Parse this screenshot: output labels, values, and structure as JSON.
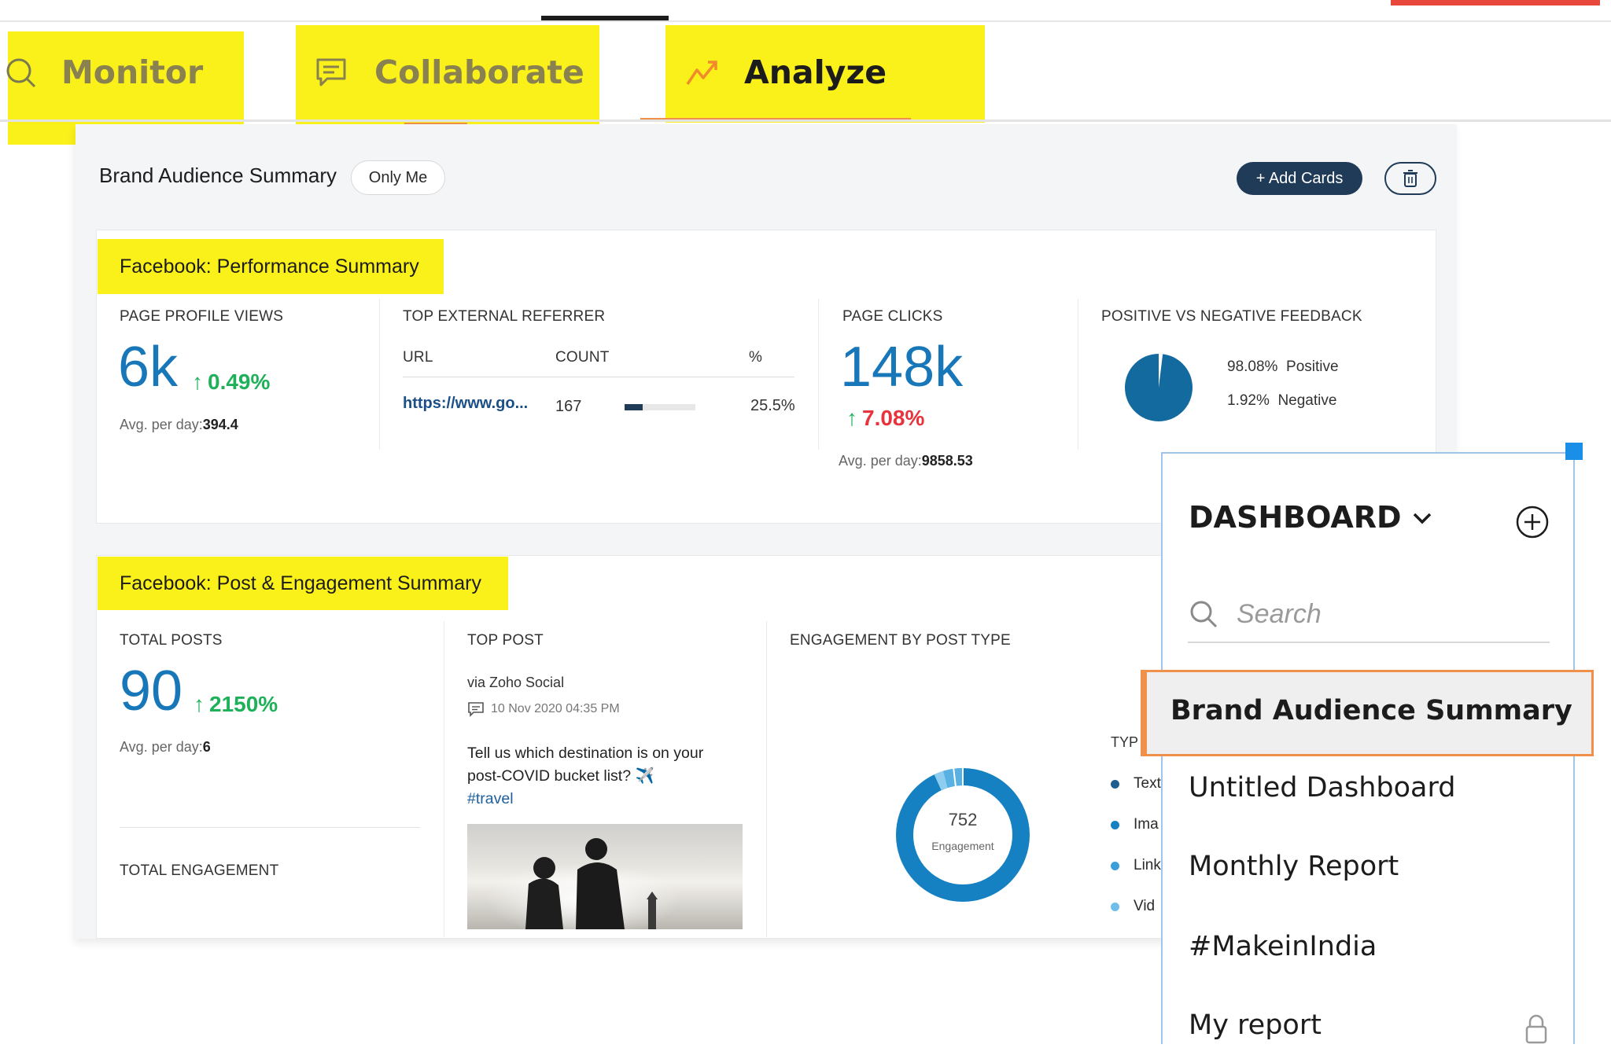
{
  "nav": {
    "monitor": "Monitor",
    "collaborate": "Collaborate",
    "analyze": "Analyze"
  },
  "dashboard": {
    "title": "Brand Audience Summary",
    "visibility": "Only Me",
    "add_cards": "+ Add Cards"
  },
  "performance": {
    "title": "Facebook: Performance Summary",
    "profile_views": {
      "label": "PAGE PROFILE VIEWS",
      "value": "6k",
      "change": "0.49%",
      "avg_label": "Avg. per day:",
      "avg_value": "394.4"
    },
    "referrer": {
      "label": "TOP EXTERNAL REFERRER",
      "col_url": "URL",
      "col_count": "COUNT",
      "col_pct": "%",
      "row_url": "https://www.go...",
      "row_count": "167",
      "row_pct": "25.5%",
      "row_fraction": 0.255
    },
    "clicks": {
      "label": "PAGE CLICKS",
      "value": "148k",
      "change": "7.08%",
      "avg_label": "Avg. per day:",
      "avg_value": "9858.53"
    },
    "feedback": {
      "label": "POSITIVE VS NEGATIVE FEEDBACK",
      "positive_pct": "98.08%",
      "positive_label": "Positive",
      "negative_pct": "1.92%",
      "negative_label": "Negative"
    }
  },
  "engagement": {
    "title": "Facebook: Post & Engagement Summary",
    "total_posts": {
      "label": "TOTAL POSTS",
      "value": "90",
      "change": "2150%",
      "avg_label": "Avg. per day:",
      "avg_value": "6"
    },
    "total_engagement_label": "TOTAL ENGAGEMENT",
    "top_post": {
      "label": "TOP POST",
      "via": "via Zoho Social",
      "date": "10 Nov 2020 04:35 PM",
      "text_line1": "Tell us which destination is on your",
      "text_line2": "post-COVID bucket list? ✈️",
      "hashtag": "#travel"
    },
    "by_type": {
      "label": "ENGAGEMENT BY POST TYPE",
      "total": "752",
      "total_label": "Engagement",
      "legend_header": "TYP",
      "legend": [
        "Text",
        "Ima",
        "Link",
        "Vid"
      ]
    }
  },
  "menu": {
    "title": "DASHBOARD",
    "search_placeholder": "Search",
    "items": [
      "Brand Audience Summary",
      "Untitled Dashboard",
      "Monthly Report",
      "#MakeinIndia",
      "My report"
    ]
  },
  "colors": {
    "highlight": "#fbf11a",
    "primary_blue": "#1877b8",
    "dark_navy": "#1f3b57",
    "positive": "#1fb15a",
    "negative": "#e8323c",
    "active_border": "#f0904a"
  },
  "icons": {
    "monitor": "search-icon",
    "collaborate": "chat-icon",
    "analyze": "trend-icon",
    "delete": "trash-icon",
    "menu_add": "plus-circle-icon",
    "search": "search-icon",
    "locked": "lock-icon"
  }
}
